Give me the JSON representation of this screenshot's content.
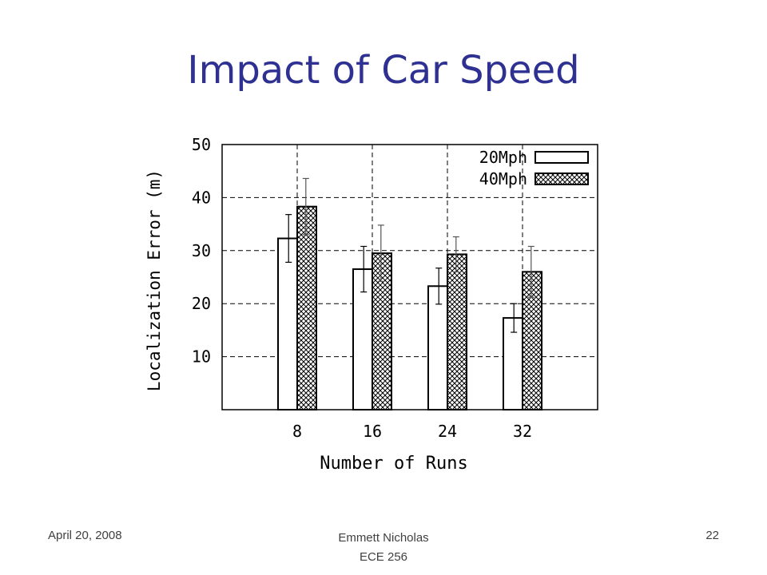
{
  "slide": {
    "title": "Impact of Car Speed",
    "title_color": "#2e3192"
  },
  "footer": {
    "date": "April 20, 2008",
    "author": "Emmett Nicholas",
    "course": "ECE 256",
    "page_number": "22"
  },
  "chart_data": {
    "type": "bar",
    "xlabel": "Number of Runs",
    "ylabel": "Localization Error (m)",
    "categories": [
      "8",
      "16",
      "24",
      "32"
    ],
    "ylim": [
      0,
      50
    ],
    "yticks": [
      10,
      20,
      30,
      40,
      50
    ],
    "grid": true,
    "legend_position": "top-right",
    "series": [
      {
        "name": "20Mph",
        "fill": "plain",
        "values": [
          32.3,
          26.5,
          23.3,
          17.3
        ],
        "error": [
          4.5,
          4.3,
          3.4,
          2.7
        ]
      },
      {
        "name": "40Mph",
        "fill": "crosshatch",
        "values": [
          38.3,
          29.5,
          29.3,
          26.0
        ],
        "error": [
          5.3,
          5.3,
          3.3,
          4.8
        ]
      }
    ]
  }
}
